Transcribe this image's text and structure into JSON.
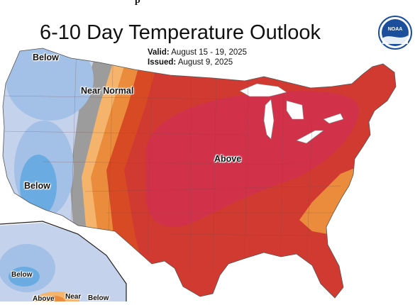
{
  "header": {
    "top_caption": "p",
    "title": "6-10 Day Temperature Outlook",
    "valid_label": "Valid:",
    "valid_value": "August 15 - 19, 2025",
    "issued_label": "Issued:",
    "issued_value": "August 9, 2025"
  },
  "logo": {
    "text": "NOAA",
    "icon": "noaa-logo"
  },
  "legend_categories": [
    "Below",
    "Near Normal",
    "Above"
  ],
  "map_labels": {
    "below_northwest": "Below",
    "near_normal": "Near Normal",
    "below_california": "Below",
    "above_center": "Above",
    "alaska_below": "Below",
    "alaska_above": "Above",
    "alaska_near": "Near",
    "alaska_below_2": "Below"
  },
  "colors": {
    "below_light": "#c5d2ec",
    "below_mid": "#a3c0e6",
    "below_dark": "#6aace2",
    "near_normal": "#9c9c9c",
    "above_light": "#f4b46c",
    "above_mid": "#ea8c3c",
    "above_dark": "#d84a24",
    "above_strong": "#d13a30",
    "above_max": "#d2314a",
    "noaa_blue": "#1b4f9c"
  }
}
